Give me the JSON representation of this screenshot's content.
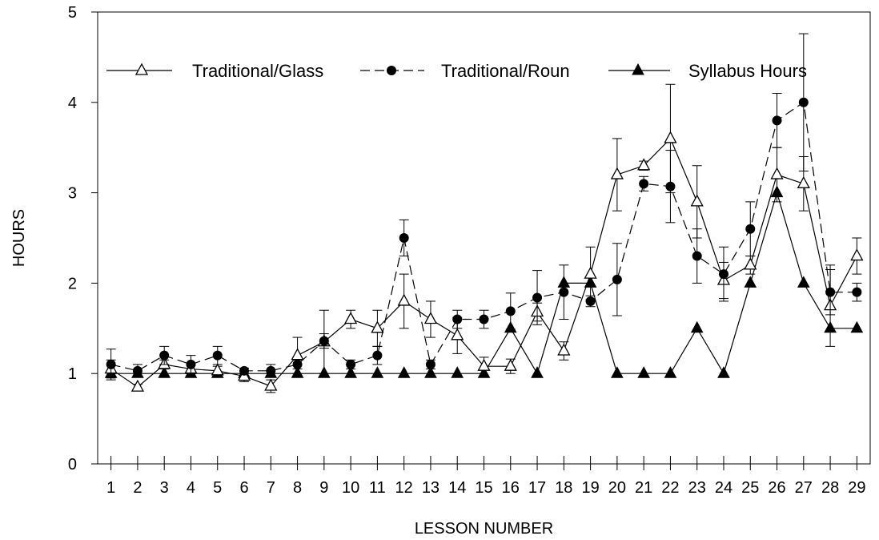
{
  "chart_data": {
    "type": "line",
    "title": "",
    "xlabel": "LESSON NUMBER",
    "ylabel": "HOURS",
    "x": [
      1,
      2,
      3,
      4,
      5,
      6,
      7,
      8,
      9,
      10,
      11,
      12,
      13,
      14,
      15,
      16,
      17,
      18,
      19,
      20,
      21,
      22,
      23,
      24,
      25,
      26,
      27,
      28,
      29
    ],
    "x_tick_labels": [
      "1",
      "2",
      "3",
      "4",
      "5",
      "6",
      "7",
      "8",
      "9",
      "10",
      "11",
      "12",
      "13",
      "14",
      "15",
      "16",
      "17",
      "18",
      "19",
      "20",
      "21",
      "22",
      "23",
      "24",
      "25",
      "26",
      "27",
      "28",
      "29"
    ],
    "ylim": [
      0,
      5
    ],
    "y_ticks": [
      0,
      1,
      2,
      3,
      4,
      5
    ],
    "y_tick_labels": [
      "0",
      "1",
      "2",
      "3",
      "4",
      "5"
    ],
    "grid": false,
    "legend_position": "top",
    "series": [
      {
        "name": "Traditional/Glass",
        "marker": "open-triangle",
        "line": "solid",
        "values": [
          1.05,
          0.85,
          1.1,
          1.05,
          1.03,
          0.97,
          0.86,
          1.2,
          1.35,
          1.6,
          1.5,
          1.8,
          1.6,
          1.42,
          1.08,
          1.08,
          1.68,
          1.25,
          2.1,
          3.2,
          3.3,
          3.6,
          2.9,
          2.03,
          2.2,
          3.2,
          3.1,
          1.75,
          2.3
        ],
        "error": [
          0.1,
          0.03,
          0.05,
          0.05,
          0.05,
          0.06,
          0.07,
          0.2,
          0.35,
          0.1,
          0.2,
          0.3,
          0.2,
          0.2,
          0.1,
          0.08,
          0.1,
          0.1,
          0.3,
          0.4,
          0.05,
          0.6,
          0.4,
          0.2,
          0.1,
          0.3,
          0.3,
          0.45,
          0.2
        ]
      },
      {
        "name": "Traditional/Roun",
        "marker": "filled-circle",
        "line": "dashed",
        "values": [
          1.1,
          1.03,
          1.2,
          1.1,
          1.2,
          1.03,
          1.03,
          1.1,
          1.36,
          1.1,
          1.2,
          2.5,
          1.1,
          1.6,
          1.6,
          1.69,
          1.84,
          1.9,
          1.8,
          2.04,
          3.1,
          3.07,
          2.3,
          2.1,
          2.6,
          3.8,
          4.0,
          1.9,
          1.9
        ],
        "error": [
          0.17,
          0.07,
          0.1,
          0.1,
          0.1,
          0.03,
          0.07,
          0.05,
          0.08,
          0.05,
          0.1,
          0.2,
          0.05,
          0.1,
          0.1,
          0.2,
          0.3,
          0.3,
          0.06,
          0.4,
          0.08,
          0.4,
          0.3,
          0.3,
          0.3,
          0.3,
          0.76,
          0.25,
          0.1
        ]
      },
      {
        "name": "Syllabus Hours",
        "marker": "filled-triangle",
        "line": "solid",
        "values": [
          1,
          1,
          1,
          1,
          1,
          1,
          1,
          1,
          1,
          1,
          1,
          1,
          1,
          1,
          1,
          1.5,
          1,
          2,
          2,
          1,
          1,
          1,
          1.5,
          1,
          2,
          3,
          2,
          1.5,
          1.5
        ],
        "error": [
          0,
          0,
          0,
          0,
          0,
          0,
          0,
          0,
          0,
          0,
          0,
          0,
          0,
          0,
          0,
          0,
          0,
          0,
          0,
          0,
          0,
          0,
          0,
          0,
          0,
          0,
          0,
          0,
          0
        ]
      }
    ]
  }
}
